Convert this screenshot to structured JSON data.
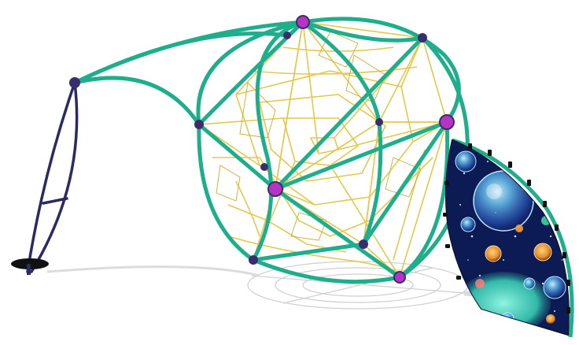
{
  "scene": {
    "subject": "dome-climbing-structure",
    "colors": {
      "background": "#ffffff",
      "frame": "#1fae8c",
      "frame_dark": "#138a6d",
      "rope": "#e3c84a",
      "rope_dark": "#c9ad2c",
      "post": "#2c2a63",
      "connector": "#b733c4",
      "connector_dark": "#3a2d6e",
      "panel_bg": "#0a1440",
      "bubble": "#6fd1ff",
      "bubble_glow": "#39d4b8",
      "shadow": "#c9c9c9",
      "base": "#111111"
    }
  }
}
